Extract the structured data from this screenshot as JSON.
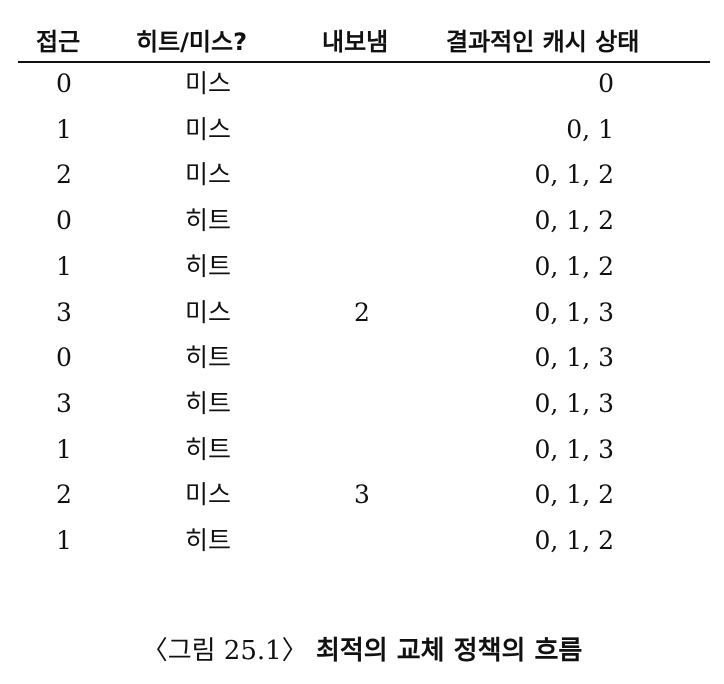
{
  "table": {
    "headers": [
      "접근",
      "히트/미스?",
      "내보냄",
      "결과적인 캐시 상태"
    ],
    "rows": [
      [
        "0",
        "미스",
        "",
        "0"
      ],
      [
        "1",
        "미스",
        "",
        "0, 1"
      ],
      [
        "2",
        "미스",
        "",
        "0, 1, 2"
      ],
      [
        "0",
        "히트",
        "",
        "0, 1, 2"
      ],
      [
        "1",
        "히트",
        "",
        "0, 1, 2"
      ],
      [
        "3",
        "미스",
        "2",
        "0, 1, 3"
      ],
      [
        "0",
        "히트",
        "",
        "0, 1, 3"
      ],
      [
        "3",
        "히트",
        "",
        "0, 1, 3"
      ],
      [
        "1",
        "히트",
        "",
        "0, 1, 3"
      ],
      [
        "2",
        "미스",
        "3",
        "0, 1, 2"
      ],
      [
        "1",
        "히트",
        "",
        "0, 1, 2"
      ]
    ]
  },
  "caption": {
    "label": "〈그림 25.1〉",
    "title": "최적의 교체 정책의 흐름"
  }
}
